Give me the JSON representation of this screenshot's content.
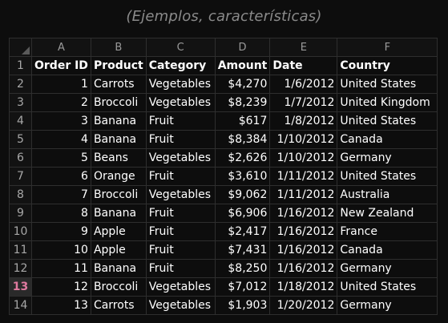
{
  "caption": "(Ejemplos, características)",
  "columns": [
    "A",
    "B",
    "C",
    "D",
    "E",
    "F"
  ],
  "header_row": {
    "row_number": "1",
    "cells": [
      "Order ID",
      "Product",
      "Category",
      "Amount",
      "Date",
      "Country"
    ]
  },
  "selected_row": "13",
  "rows": [
    {
      "n": "2",
      "id": "1",
      "product": "Carrots",
      "category": "Vegetables",
      "amount": "$4,270",
      "date": "1/6/2012",
      "country": "United States"
    },
    {
      "n": "3",
      "id": "2",
      "product": "Broccoli",
      "category": "Vegetables",
      "amount": "$8,239",
      "date": "1/7/2012",
      "country": "United Kingdom"
    },
    {
      "n": "4",
      "id": "3",
      "product": "Banana",
      "category": "Fruit",
      "amount": "$617",
      "date": "1/8/2012",
      "country": "United States"
    },
    {
      "n": "5",
      "id": "4",
      "product": "Banana",
      "category": "Fruit",
      "amount": "$8,384",
      "date": "1/10/2012",
      "country": "Canada"
    },
    {
      "n": "6",
      "id": "5",
      "product": "Beans",
      "category": "Vegetables",
      "amount": "$2,626",
      "date": "1/10/2012",
      "country": "Germany"
    },
    {
      "n": "7",
      "id": "6",
      "product": "Orange",
      "category": "Fruit",
      "amount": "$3,610",
      "date": "1/11/2012",
      "country": "United States"
    },
    {
      "n": "8",
      "id": "7",
      "product": "Broccoli",
      "category": "Vegetables",
      "amount": "$9,062",
      "date": "1/11/2012",
      "country": "Australia"
    },
    {
      "n": "9",
      "id": "8",
      "product": "Banana",
      "category": "Fruit",
      "amount": "$6,906",
      "date": "1/16/2012",
      "country": "New Zealand"
    },
    {
      "n": "10",
      "id": "9",
      "product": "Apple",
      "category": "Fruit",
      "amount": "$2,417",
      "date": "1/16/2012",
      "country": "France"
    },
    {
      "n": "11",
      "id": "10",
      "product": "Apple",
      "category": "Fruit",
      "amount": "$7,431",
      "date": "1/16/2012",
      "country": "Canada"
    },
    {
      "n": "12",
      "id": "11",
      "product": "Banana",
      "category": "Fruit",
      "amount": "$8,250",
      "date": "1/16/2012",
      "country": "Germany"
    },
    {
      "n": "13",
      "id": "12",
      "product": "Broccoli",
      "category": "Vegetables",
      "amount": "$7,012",
      "date": "1/18/2012",
      "country": "United States"
    },
    {
      "n": "14",
      "id": "13",
      "product": "Carrots",
      "category": "Vegetables",
      "amount": "$1,903",
      "date": "1/20/2012",
      "country": "Germany"
    }
  ]
}
